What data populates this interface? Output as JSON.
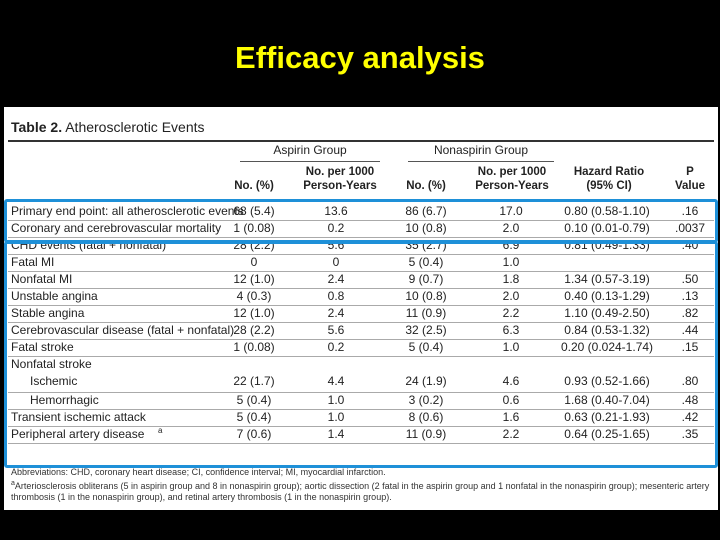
{
  "slide_title": "Efficacy analysis",
  "table": {
    "caption_prefix": "Table 2.",
    "caption_text": "Atherosclerotic Events",
    "groups": [
      "Aspirin Group",
      "Nonaspirin Group"
    ],
    "columns": [
      {
        "line1": "",
        "line2": "No. (%)"
      },
      {
        "line1": "No. per 1000",
        "line2": "Person-Years"
      },
      {
        "line1": "",
        "line2": "No. (%)"
      },
      {
        "line1": "No. per 1000",
        "line2": "Person-Years"
      },
      {
        "line1": "Hazard Ratio",
        "line2": "(95% CI)"
      },
      {
        "line1": "P",
        "line2": "Value"
      }
    ],
    "rows": [
      {
        "label": "Primary end point: all atherosclerotic events",
        "a_no": "68 (5.4)",
        "a_rate": "13.6",
        "n_no": "86 (6.7)",
        "n_rate": "17.0",
        "hr": "0.80 (0.58-1.10)",
        "p": ".16"
      },
      {
        "label": "Coronary and cerebrovascular mortality",
        "a_no": "1 (0.08)",
        "a_rate": "0.2",
        "n_no": "10 (0.8)",
        "n_rate": "2.0",
        "hr": "0.10 (0.01-0.79)",
        "p": ".0037"
      },
      {
        "label": "CHD events (fatal + nonfatal)",
        "a_no": "28 (2.2)",
        "a_rate": "5.6",
        "n_no": "35 (2.7)",
        "n_rate": "6.9",
        "hr": "0.81 (0.49-1.33)",
        "p": ".40"
      },
      {
        "label": "Fatal MI",
        "a_no": "0",
        "a_rate": "0",
        "n_no": "5 (0.4)",
        "n_rate": "1.0",
        "hr": "",
        "p": ""
      },
      {
        "label": "Nonfatal MI",
        "a_no": "12 (1.0)",
        "a_rate": "2.4",
        "n_no": "9 (0.7)",
        "n_rate": "1.8",
        "hr": "1.34 (0.57-3.19)",
        "p": ".50"
      },
      {
        "label": "Unstable angina",
        "a_no": "4 (0.3)",
        "a_rate": "0.8",
        "n_no": "10 (0.8)",
        "n_rate": "2.0",
        "hr": "0.40 (0.13-1.29)",
        "p": ".13"
      },
      {
        "label": "Stable angina",
        "a_no": "12 (1.0)",
        "a_rate": "2.4",
        "n_no": "11 (0.9)",
        "n_rate": "2.2",
        "hr": "1.10 (0.49-2.50)",
        "p": ".82"
      },
      {
        "label": "Cerebrovascular disease (fatal + nonfatal)",
        "a_no": "28 (2.2)",
        "a_rate": "5.6",
        "n_no": "32 (2.5)",
        "n_rate": "6.3",
        "hr": "0.84 (0.53-1.32)",
        "p": ".44"
      },
      {
        "label": "Fatal stroke",
        "a_no": "1 (0.08)",
        "a_rate": "0.2",
        "n_no": "5 (0.4)",
        "n_rate": "1.0",
        "hr": "0.20 (0.024-1.74)",
        "p": ".15"
      },
      {
        "label": "Nonfatal stroke",
        "a_no": "",
        "a_rate": "",
        "n_no": "",
        "n_rate": "",
        "hr": "",
        "p": ""
      },
      {
        "label": "Ischemic",
        "a_no": "22 (1.7)",
        "a_rate": "4.4",
        "n_no": "24 (1.9)",
        "n_rate": "4.6",
        "hr": "0.93 (0.52-1.66)",
        "p": ".80"
      },
      {
        "label": "Hemorrhagic",
        "a_no": "5 (0.4)",
        "a_rate": "1.0",
        "n_no": "3 (0.2)",
        "n_rate": "0.6",
        "hr": "1.68 (0.40-7.04)",
        "p": ".48"
      },
      {
        "label": "Transient ischemic attack",
        "a_no": "5 (0.4)",
        "a_rate": "1.0",
        "n_no": "8 (0.6)",
        "n_rate": "1.6",
        "hr": "0.63 (0.21-1.93)",
        "p": ".42"
      },
      {
        "label": "Peripheral artery disease",
        "label_sup": "a",
        "a_no": "7 (0.6)",
        "a_rate": "1.4",
        "n_no": "11 (0.9)",
        "n_rate": "2.2",
        "hr": "0.64 (0.25-1.65)",
        "p": ".35"
      }
    ],
    "footnote_abbrev": "Abbreviations: CHD, coronary heart disease; CI, confidence interval; MI, myocardial infarction.",
    "footnote_a_mark": "a",
    "footnote_a": "Arteriosclerosis obliterans (5 in aspirin group and 8 in nonaspirin group); aortic dissection (2 fatal in the aspirin group and 1 nonfatal in the nonaspirin group); mesenteric artery thrombosis (1 in the nonaspirin group), and retinal artery thrombosis (1 in the nonaspirin group)."
  },
  "highlight_color": "#1e90d8"
}
